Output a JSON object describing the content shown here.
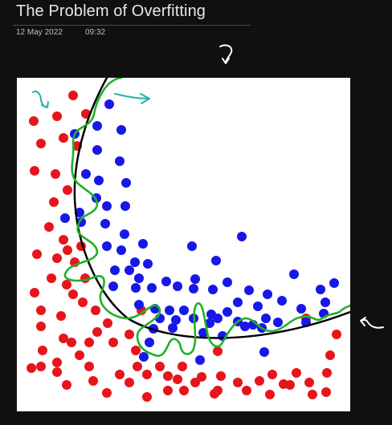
{
  "note": {
    "title": "The Problem of Overfitting",
    "date": "12 May 2022",
    "time": "09:32"
  },
  "icons": {
    "top_arrow": "curved-down-arrow-icon",
    "side_arrow": "curved-left-arrow-icon"
  },
  "colors": {
    "background": "#101010",
    "red_points": "#e8141c",
    "blue_points": "#1717e8",
    "smooth_boundary": "#000000",
    "overfit_boundary": "#21b028",
    "annotation_ink": "#ffffff"
  },
  "chart_data": {
    "type": "scatter",
    "title": "",
    "xlabel": "",
    "ylabel": "",
    "xlim": [
      0,
      415
    ],
    "ylim": [
      0,
      416
    ],
    "grid": false,
    "series": [
      {
        "name": "",
        "color": "#e8141c",
        "points": [
          [
            21,
            54
          ],
          [
            50,
            48
          ],
          [
            70,
            22
          ],
          [
            86,
            45
          ],
          [
            30,
            82
          ],
          [
            58,
            75
          ],
          [
            75,
            85
          ],
          [
            22,
            116
          ],
          [
            48,
            120
          ],
          [
            63,
            140
          ],
          [
            46,
            155
          ],
          [
            40,
            186
          ],
          [
            58,
            202
          ],
          [
            25,
            220
          ],
          [
            50,
            225
          ],
          [
            63,
            215
          ],
          [
            72,
            230
          ],
          [
            80,
            210
          ],
          [
            43,
            250
          ],
          [
            62,
            258
          ],
          [
            85,
            250
          ],
          [
            70,
            270
          ],
          [
            22,
            268
          ],
          [
            30,
            290
          ],
          [
            55,
            297
          ],
          [
            82,
            280
          ],
          [
            98,
            290
          ],
          [
            113,
            306
          ],
          [
            100,
            317
          ],
          [
            155,
            290
          ],
          [
            90,
            330
          ],
          [
            68,
            330
          ],
          [
            30,
            310
          ],
          [
            32,
            340
          ],
          [
            58,
            325
          ],
          [
            50,
            355
          ],
          [
            30,
            360
          ],
          [
            18,
            362
          ],
          [
            78,
            346
          ],
          [
            90,
            360
          ],
          [
            120,
            330
          ],
          [
            140,
            320
          ],
          [
            148,
            340
          ],
          [
            150,
            360
          ],
          [
            128,
            370
          ],
          [
            95,
            378
          ],
          [
            112,
            393
          ],
          [
            62,
            383
          ],
          [
            50,
            367
          ],
          [
            140,
            380
          ],
          [
            162,
            370
          ],
          [
            178,
            360
          ],
          [
            188,
            372
          ],
          [
            200,
            376
          ],
          [
            222,
            380
          ],
          [
            162,
            398
          ],
          [
            188,
            390
          ],
          [
            208,
            390
          ],
          [
            230,
            373
          ],
          [
            250,
            341
          ],
          [
            254,
            372
          ],
          [
            250,
            390
          ],
          [
            275,
            380
          ],
          [
            286,
            390
          ],
          [
            302,
            378
          ],
          [
            318,
            370
          ],
          [
            332,
            382
          ],
          [
            348,
            368
          ],
          [
            364,
            380
          ],
          [
            368,
            395
          ],
          [
            385,
            392
          ],
          [
            386,
            368
          ],
          [
            390,
            346
          ],
          [
            398,
            320
          ],
          [
            360,
            300
          ],
          [
            315,
            395
          ],
          [
            340,
            383
          ],
          [
            246,
            394
          ],
          [
            206,
            360
          ]
        ]
      },
      {
        "name": "",
        "color": "#1717e8",
        "points": [
          [
            115,
            33
          ],
          [
            130,
            65
          ],
          [
            100,
            60
          ],
          [
            72,
            70
          ],
          [
            100,
            90
          ],
          [
            128,
            104
          ],
          [
            86,
            120
          ],
          [
            102,
            128
          ],
          [
            136,
            131
          ],
          [
            99,
            150
          ],
          [
            112,
            160
          ],
          [
            80,
            180
          ],
          [
            110,
            182
          ],
          [
            135,
            160
          ],
          [
            78,
            168
          ],
          [
            60,
            175
          ],
          [
            134,
            195
          ],
          [
            112,
            210
          ],
          [
            130,
            215
          ],
          [
            157,
            207
          ],
          [
            147,
            230
          ],
          [
            122,
            240
          ],
          [
            140,
            240
          ],
          [
            163,
            232
          ],
          [
            120,
            260
          ],
          [
            148,
            262
          ],
          [
            152,
            250
          ],
          [
            168,
            262
          ],
          [
            186,
            254
          ],
          [
            200,
            260
          ],
          [
            152,
            283
          ],
          [
            172,
            288
          ],
          [
            208,
            290
          ],
          [
            222,
            251
          ],
          [
            220,
            263
          ],
          [
            244,
            264
          ],
          [
            262,
            255
          ],
          [
            218,
            210
          ],
          [
            248,
            228
          ],
          [
            280,
            198
          ],
          [
            275,
            280
          ],
          [
            289,
            265
          ],
          [
            300,
            285
          ],
          [
            312,
            270
          ],
          [
            330,
            278
          ],
          [
            345,
            245
          ],
          [
            354,
            288
          ],
          [
            378,
            264
          ],
          [
            395,
            256
          ],
          [
            384,
            280
          ],
          [
            382,
            294
          ],
          [
            360,
            305
          ],
          [
            325,
            305
          ],
          [
            310,
            300
          ],
          [
            305,
            312
          ],
          [
            284,
            310
          ],
          [
            275,
            304
          ],
          [
            250,
            300
          ],
          [
            242,
            295
          ],
          [
            220,
            300
          ],
          [
            232,
            318
          ],
          [
            198,
            302
          ],
          [
            190,
            290
          ],
          [
            178,
            300
          ],
          [
            170,
            313
          ],
          [
            165,
            330
          ],
          [
            158,
            348
          ],
          [
            228,
            352
          ],
          [
            308,
            342
          ],
          [
            262,
            292
          ],
          [
            240,
            306
          ],
          [
            256,
            322
          ],
          [
            294,
            308
          ],
          [
            194,
            312
          ]
        ]
      }
    ]
  }
}
